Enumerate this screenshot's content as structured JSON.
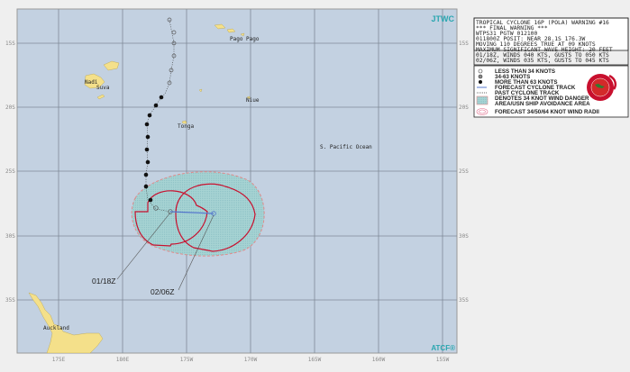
{
  "map": {
    "agency": "JTWC",
    "footer": "ATCF®",
    "ocean_label": "S. Pacific Ocean",
    "lon_ticks": [
      "175E",
      "180E",
      "175W",
      "170W",
      "165W",
      "160W",
      "155W"
    ],
    "lat_ticks": [
      "15S",
      "20S",
      "25S",
      "30S",
      "35S"
    ],
    "places": [
      "Pago Pago",
      "Niue",
      "Tonga",
      "Nadi",
      "Suva",
      "Auckland"
    ],
    "track_labels": [
      "01/18Z",
      "02/06Z"
    ],
    "colors": {
      "ocean": "#c3d1e1",
      "land": "#f4e08a",
      "danger_area": "#9fd0d2",
      "radii": "#c8102e",
      "forecast_track": "#5577cc"
    }
  },
  "warning": {
    "lines": [
      "TROPICAL CYCLONE 16P (POLA) WARNING #16",
      "*** FINAL WARNING ***",
      "WTPS31 PGTW 012100",
      "011800Z POSIT: NEAR 28.1S 176.3W",
      "MOVING 110 DEGREES TRUE AT 09 KNOTS",
      "MAXIMUM SIGNIFICANT WAVE HEIGHT: 20 FEET",
      "01/18Z, WINDS 040 KTS, GUSTS TO 050 KTS",
      "02/06Z, WINDS 035 KTS, GUSTS TO 045 KTS"
    ]
  },
  "legend": {
    "items": [
      {
        "icon": "cyclone-open-icon",
        "label": "LESS THAN 34 KNOTS"
      },
      {
        "icon": "cyclone-half-icon",
        "label": "34-63 KNOTS"
      },
      {
        "icon": "cyclone-filled-icon",
        "label": "MORE THAN 63 KNOTS"
      },
      {
        "icon": "forecast-track-icon",
        "label": "FORECAST CYCLONE TRACK"
      },
      {
        "icon": "past-track-icon",
        "label": "PAST CYCLONE TRACK"
      },
      {
        "icon": "danger-area-icon",
        "label": "DENOTES 34 KNOT WIND DANGER"
      },
      {
        "icon": "",
        "label": "AREA/USN SHIP AVOIDANCE AREA"
      },
      {
        "icon": "wind-radii-icon",
        "label": "FORECAST 34/50/64 KNOT WIND RADII"
      }
    ]
  }
}
